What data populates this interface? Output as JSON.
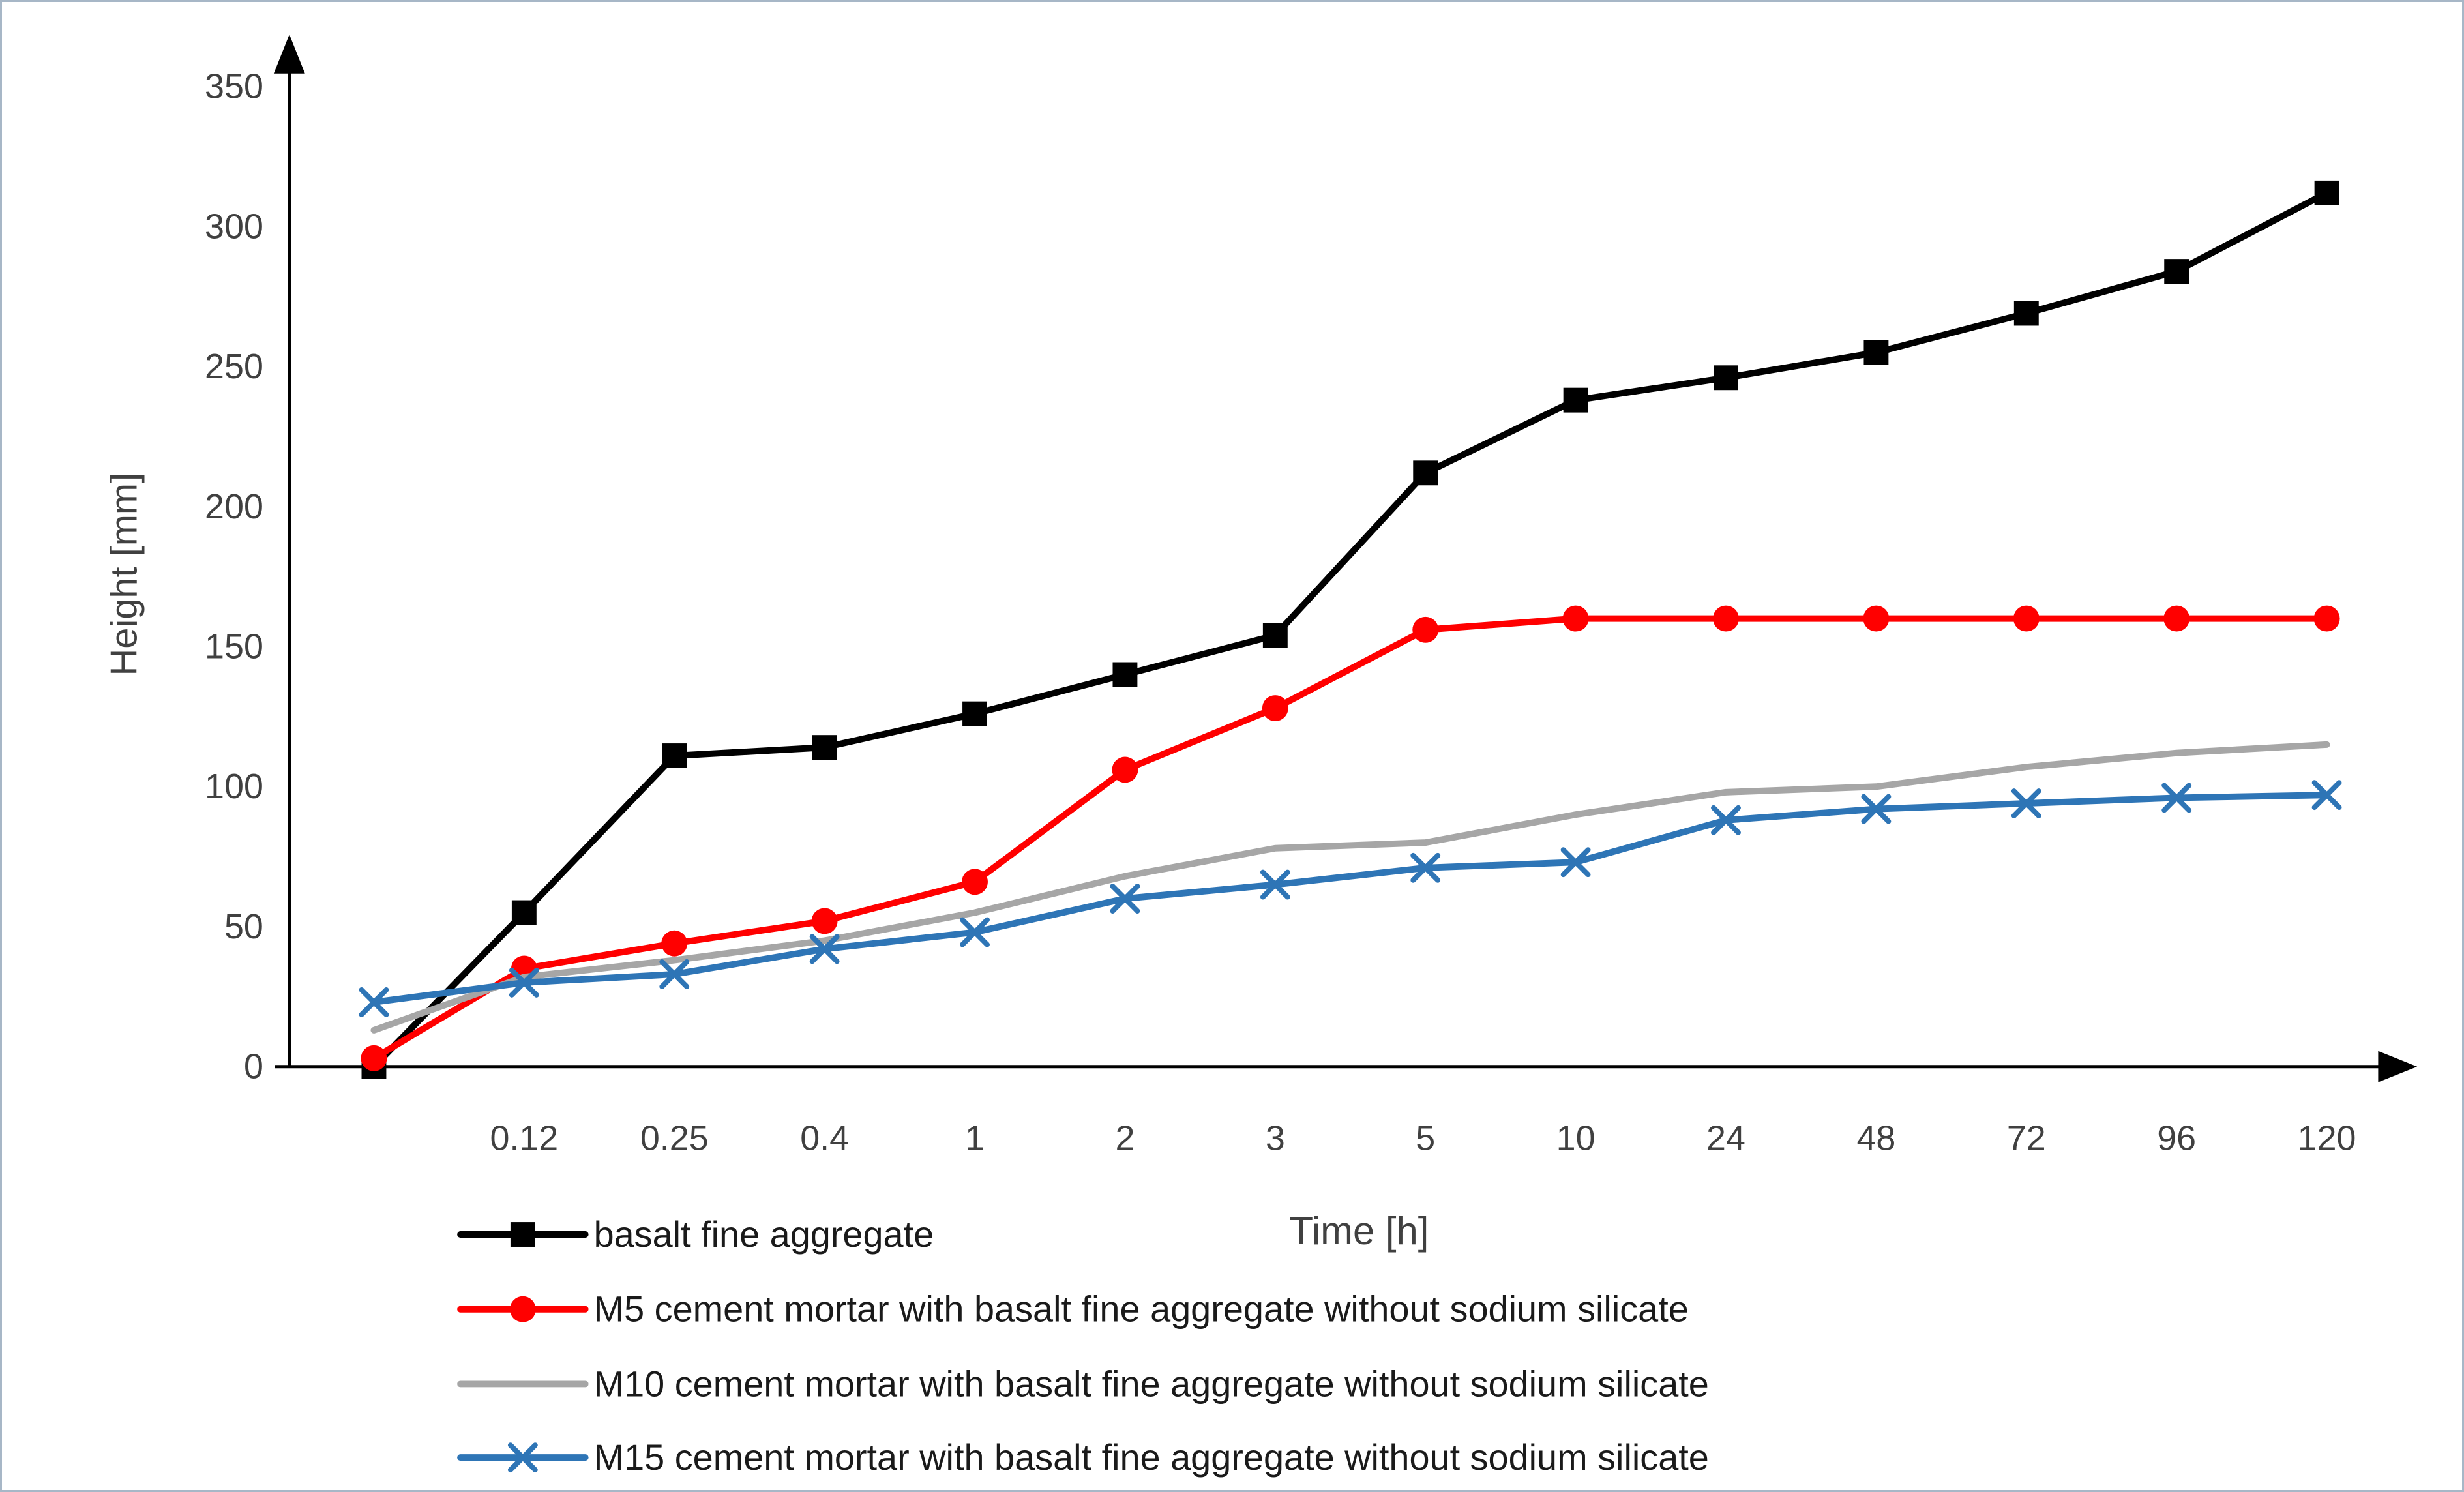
{
  "figure": {
    "background": "#ffffff",
    "border_color": "#a7b7c7"
  },
  "chart_data": {
    "type": "line",
    "title": "",
    "xlabel": "Time [h]",
    "ylabel": "Height [mm]",
    "ylim": [
      0,
      350
    ],
    "yticks": [
      0,
      50,
      100,
      150,
      200,
      250,
      300,
      350
    ],
    "grid": false,
    "legend_position": "bottom-left",
    "axis_color": "#000000",
    "tick_label_color": "#404040",
    "categories": [
      "",
      "0.12",
      "0.25",
      "0.4",
      "1",
      "2",
      "3",
      "5",
      "10",
      "24",
      "48",
      "72",
      "96",
      "120"
    ],
    "series": [
      {
        "name": "basalt fine aggregate",
        "color": "#000000",
        "marker": "square",
        "values": [
          0,
          55,
          111,
          114,
          126,
          140,
          154,
          212,
          238,
          246,
          255,
          269,
          284,
          312
        ]
      },
      {
        "name": "M5 cement mortar with basalt fine aggregate without sodium silicate",
        "color": "#ff0000",
        "marker": "circle",
        "values": [
          3,
          35,
          44,
          52,
          66,
          106,
          128,
          156,
          160,
          160,
          160,
          160,
          160,
          160
        ]
      },
      {
        "name": "M10 cement mortar with basalt fine aggregate without sodium silicate",
        "color": "#a6a6a6",
        "marker": "none",
        "values": [
          13,
          32,
          38,
          45,
          55,
          68,
          78,
          80,
          90,
          98,
          100,
          107,
          112,
          115
        ]
      },
      {
        "name": "M15 cement mortar with basalt fine aggregate without sodium silicate",
        "color": "#2e75b6",
        "marker": "x",
        "values": [
          23,
          30,
          33,
          42,
          48,
          60,
          65,
          71,
          73,
          88,
          92,
          94,
          96,
          97
        ]
      }
    ]
  }
}
